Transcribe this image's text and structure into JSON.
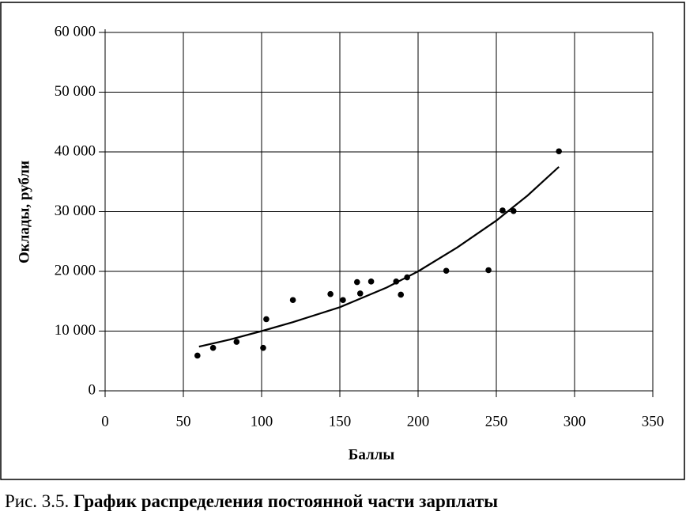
{
  "chart_data": {
    "type": "scatter",
    "y_label": "Оклады, рубли",
    "x_label": "Баллы",
    "caption_number": "Рис. 3.5.",
    "caption_text": "График распределения постоянной части зарплаты",
    "x": [
      59,
      69,
      84,
      101,
      103,
      120,
      144,
      152,
      161,
      163,
      170,
      186,
      189,
      193,
      218,
      245,
      254,
      261,
      290
    ],
    "values": [
      5900,
      7200,
      8200,
      7200,
      12000,
      15200,
      16200,
      15200,
      18200,
      16300,
      18300,
      18300,
      16100,
      19000,
      20100,
      20200,
      30200,
      30100,
      40100
    ],
    "color": "#000000",
    "trend": {
      "x": [
        60,
        80,
        100,
        120,
        150,
        180,
        200,
        225,
        250,
        270,
        290
      ],
      "values": [
        7400,
        8600,
        10000,
        11500,
        14000,
        17300,
        20000,
        24000,
        28500,
        32700,
        37500
      ]
    },
    "xlim": [
      0,
      350
    ],
    "xticks": [
      0,
      50,
      100,
      150,
      200,
      250,
      300,
      350
    ],
    "ylim": [
      0,
      60000
    ],
    "yticks": [
      0,
      {
        "value": 10000,
        "label": "10 000"
      },
      {
        "value": 20000,
        "label": "20 000"
      },
      {
        "value": 30000,
        "label": "30 000"
      },
      {
        "value": 40000,
        "label": "40 000"
      },
      {
        "value": 50000,
        "label": "50 000"
      },
      {
        "value": 60000,
        "label": "60 000"
      }
    ],
    "grid": true
  }
}
